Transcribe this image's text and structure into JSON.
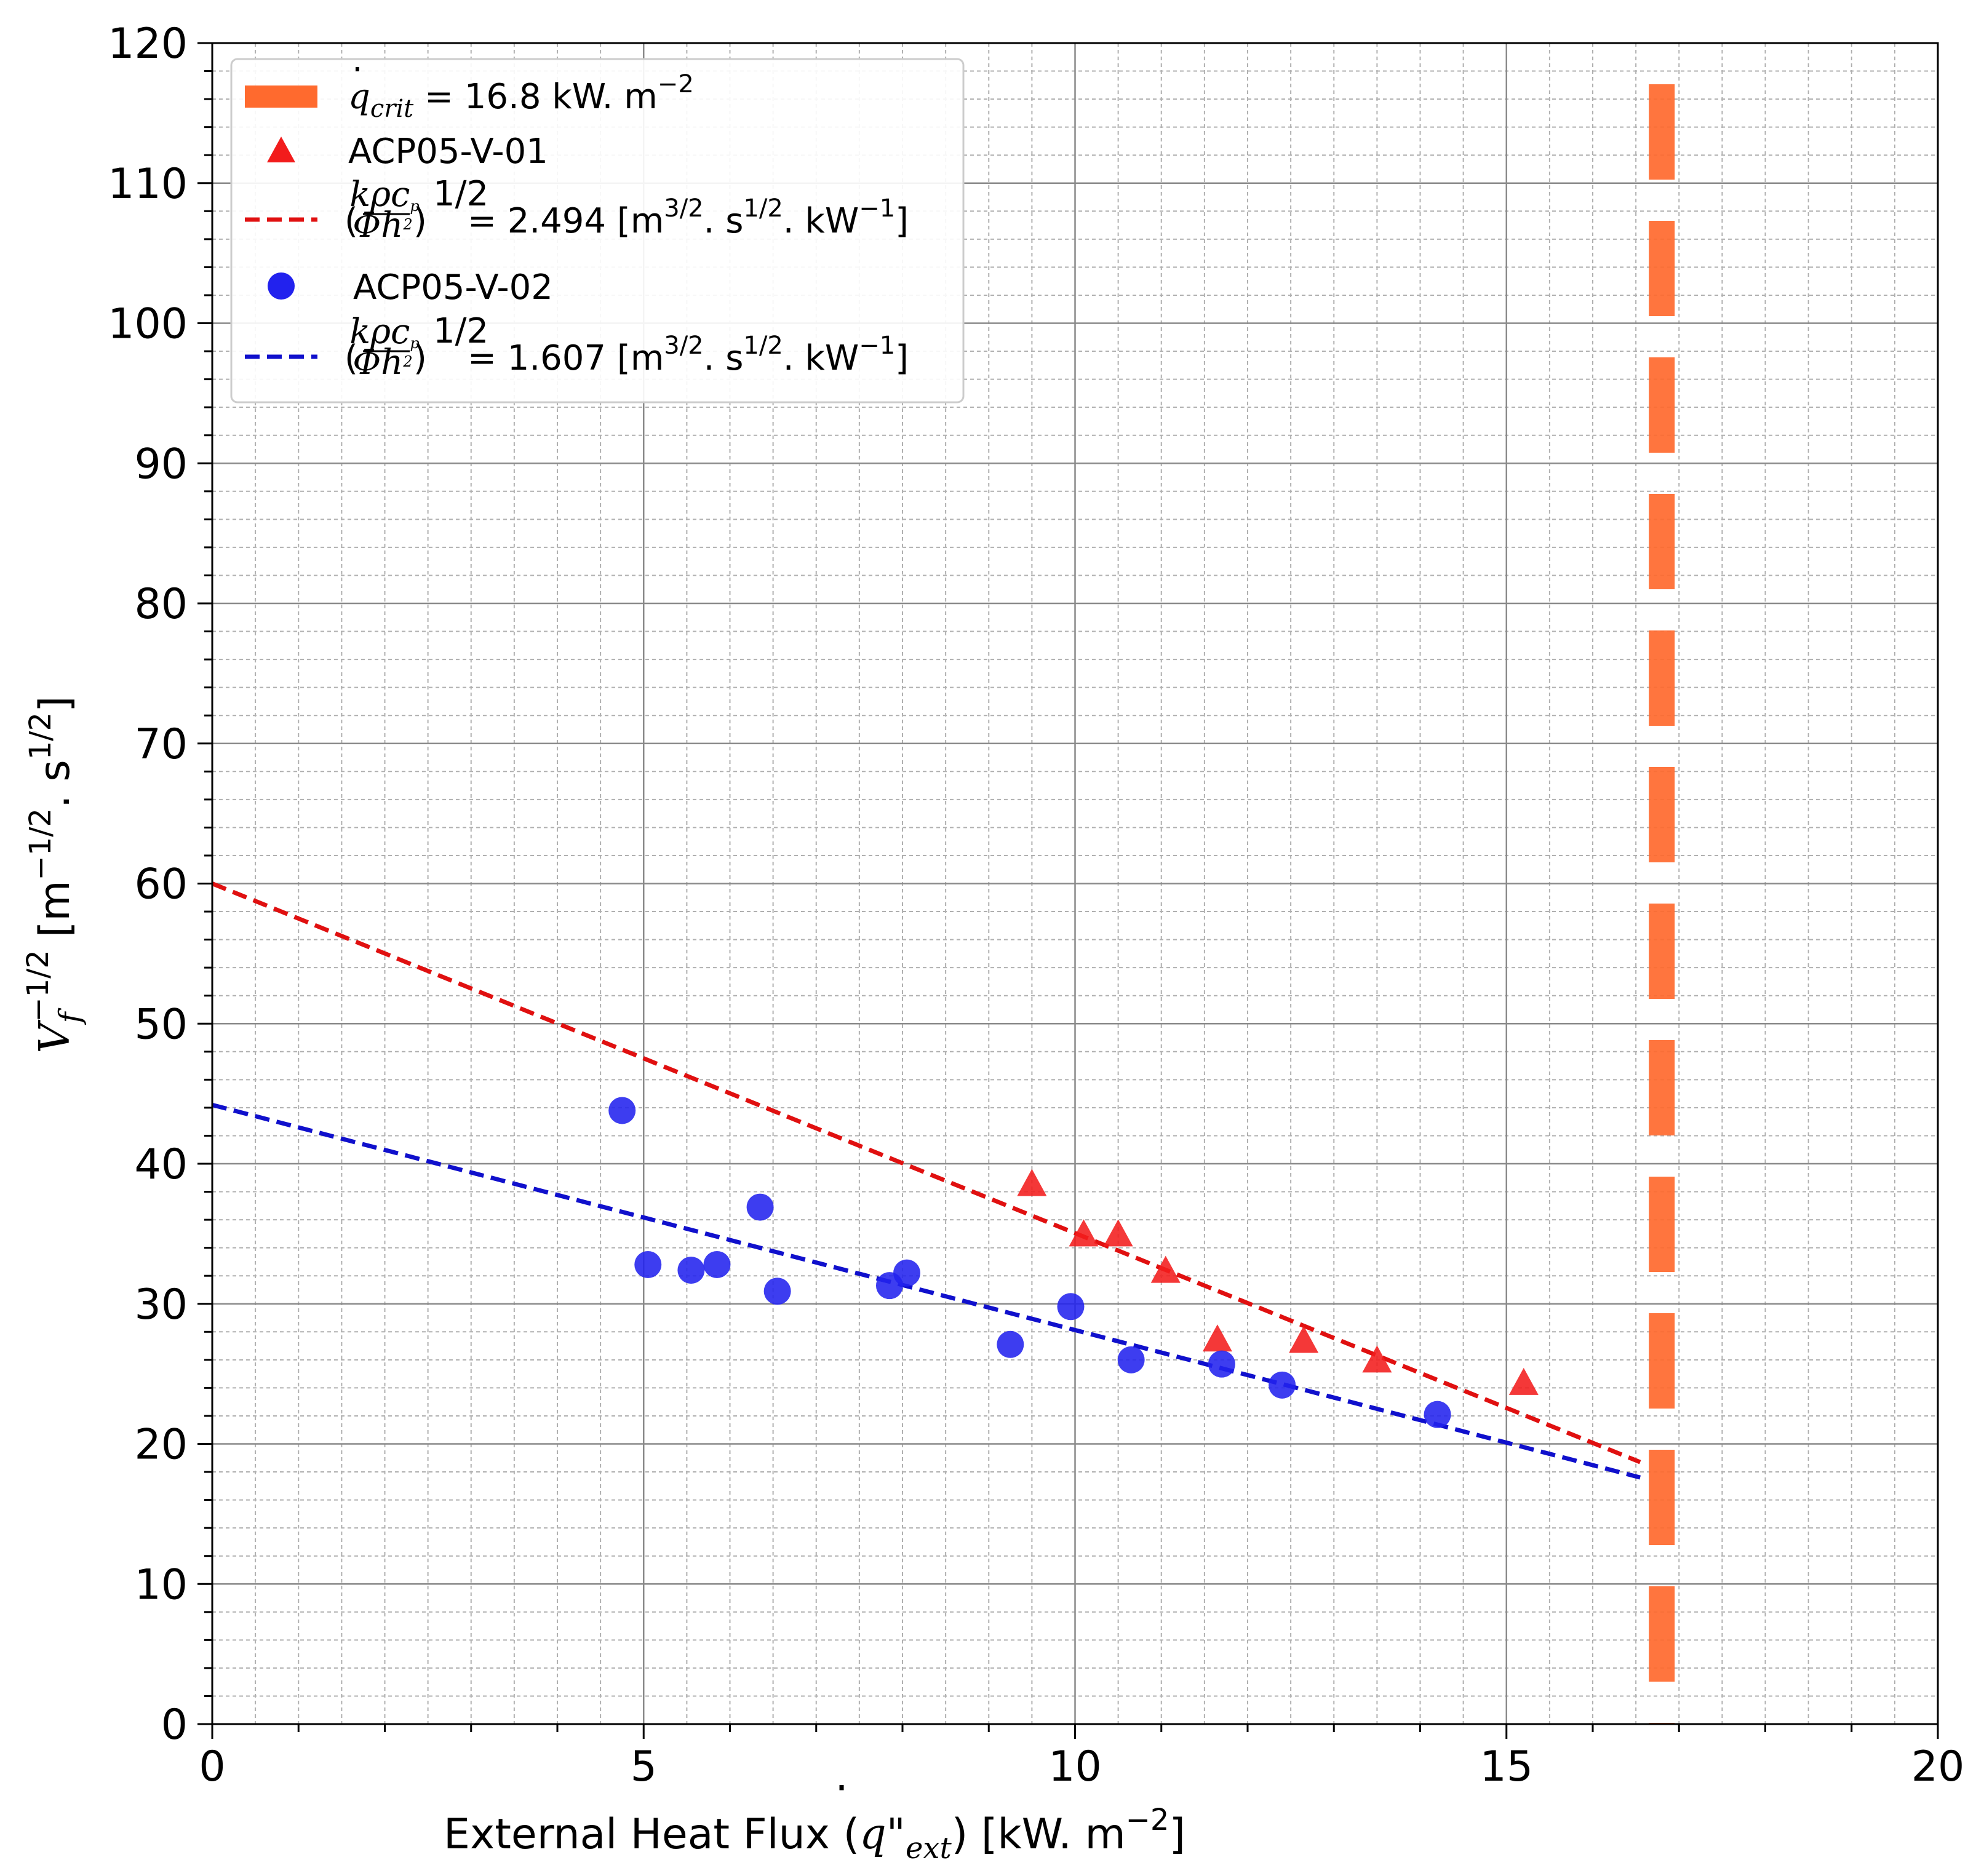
{
  "chart_data": {
    "type": "scatter",
    "xlabel_prefix": "External Heat Flux (",
    "xlabel_q": "q\"",
    "xlabel_sub": "ext",
    "xlabel_suffix": ") [kW. m",
    "xlabel_exp": "−2",
    "xlabel_close": "]",
    "ylabel_main": "V",
    "ylabel_sub": "f",
    "ylabel_sup": "−1/2",
    "ylabel_units": "[m",
    "ylabel_units_sup1": "−1/2",
    "ylabel_units_mid": ". s",
    "ylabel_units_sup2": "1/2",
    "ylabel_units_close": "]",
    "xlim": [
      0,
      20
    ],
    "ylim": [
      0,
      120
    ],
    "x_ticks": [
      "0",
      "5",
      "10",
      "15",
      "20"
    ],
    "y_ticks": [
      "0",
      "10",
      "20",
      "30",
      "40",
      "50",
      "60",
      "70",
      "80",
      "90",
      "100",
      "110",
      "120"
    ],
    "grid": true,
    "legend_position": "top-left",
    "critical_flux": {
      "x": 16.8,
      "color": "#ff6a2e",
      "label_prefix": "q",
      "label_sub": "crit",
      "label_value": " = 16.8 kW. m",
      "label_exp": "−2"
    },
    "series": [
      {
        "name": "ACP05-V-01",
        "marker": "triangle",
        "color": "#f21c1c",
        "x": [
          9.5,
          10.1,
          10.5,
          11.05,
          11.65,
          12.65,
          13.5,
          15.2
        ],
        "y": [
          38.4,
          34.8,
          34.8,
          32.2,
          27.3,
          27.2,
          25.8,
          24.2
        ]
      },
      {
        "name": "ACP05-V-02",
        "marker": "circle",
        "color": "#2222ee",
        "x": [
          4.75,
          5.05,
          5.55,
          5.85,
          6.35,
          6.55,
          7.85,
          8.05,
          9.25,
          9.95,
          10.65,
          11.7,
          12.4,
          14.2
        ],
        "y": [
          43.8,
          32.8,
          32.4,
          32.8,
          36.9,
          30.9,
          31.3,
          32.2,
          27.1,
          29.8,
          26.0,
          25.7,
          24.2,
          22.1
        ]
      }
    ],
    "fits": [
      {
        "color": "#e01010",
        "x": [
          0,
          16.55
        ],
        "y": [
          60.0,
          18.7
        ],
        "label_value": " = 2.494 [m",
        "label_sup1": "3/2",
        "label_mid": ". s",
        "label_sup2": "1/2",
        "label_tail": ". kW",
        "label_sup3": "−1",
        "label_close": "]"
      },
      {
        "color": "#1010cc",
        "x": [
          0,
          16.55
        ],
        "y": [
          44.2,
          17.6
        ],
        "label_value": " = 1.607 [m",
        "label_sup1": "3/2",
        "label_mid": ". s",
        "label_sup2": "1/2",
        "label_tail": ". kW",
        "label_sup3": "−1",
        "label_close": "]"
      }
    ],
    "fit_label_exp": "1/2",
    "fit_label_frac_num": "kρc",
    "fit_label_frac_num_sub": "p",
    "fit_label_frac_den": "Φh",
    "fit_label_frac_den_sup": "2"
  }
}
